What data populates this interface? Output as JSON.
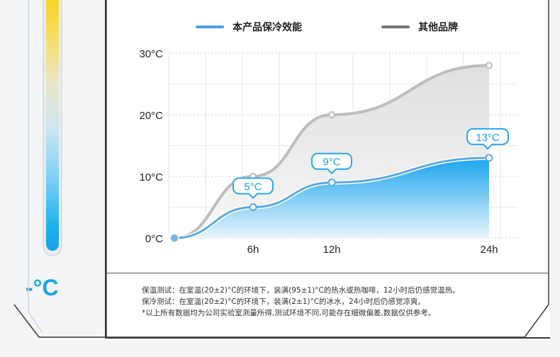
{
  "unit_symbol": "-°C",
  "legend": {
    "product": {
      "label": "本产品保冷效能",
      "color": "#4d9ee6"
    },
    "other": {
      "label": "其他品牌",
      "color": "#777777"
    }
  },
  "chart_data": {
    "type": "area",
    "x_ticks": [
      "6h",
      "12h",
      "24h"
    ],
    "y_ticks": [
      "0°C",
      "10°C",
      "20°C",
      "30°C"
    ],
    "ylim": [
      0,
      30
    ],
    "grid": true,
    "legend_position": "top",
    "series": [
      {
        "name": "本产品保冷效能",
        "color": "#1aa5ee",
        "points": [
          {
            "x": 0,
            "y": 0
          },
          {
            "x": 6,
            "y": 5
          },
          {
            "x": 12,
            "y": 9
          },
          {
            "x": 24,
            "y": 13
          }
        ],
        "labels": [
          "5°C",
          "9°C",
          "13°C"
        ]
      },
      {
        "name": "其他品牌",
        "color": "#b9b9b9",
        "points": [
          {
            "x": 0,
            "y": 0
          },
          {
            "x": 6,
            "y": 10
          },
          {
            "x": 12,
            "y": 20
          },
          {
            "x": 24,
            "y": 28
          }
        ]
      }
    ]
  },
  "notes": [
    "保温测试：在室温(20±2)°C的环境下，装满(95±1)°C的热水或热咖啡，12小时后仍感觉温热。",
    "保冷测试：在室温(20±2)°C的环境下，装满(2±1)°C的冰水，24小时后仍感觉凉爽。",
    "*以上所有数据均为公司实验室测量所得,测试环境不同,可能存在细微偏差,数据仅供参考。"
  ]
}
